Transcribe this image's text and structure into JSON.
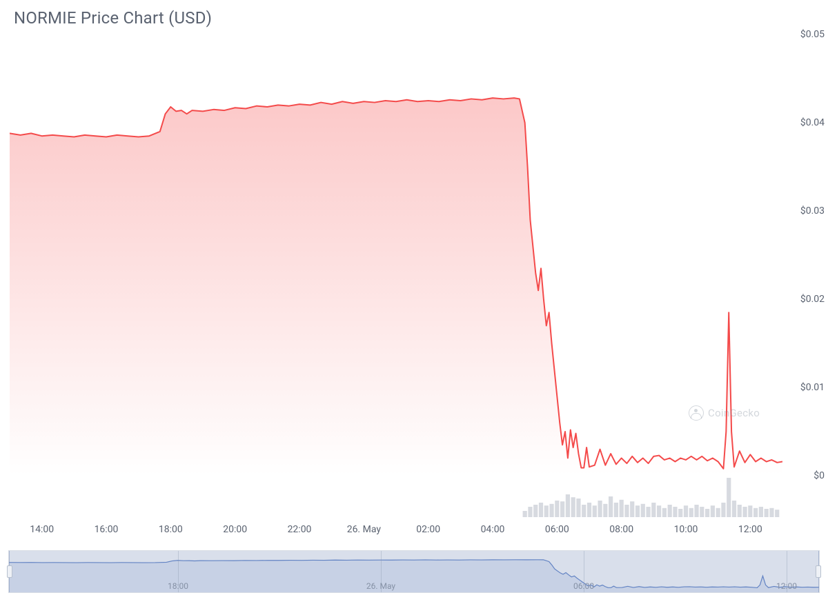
{
  "chart": {
    "title": "NORMIE Price Chart (USD)",
    "type": "area",
    "line_color": "#f44a4a",
    "line_width": 2,
    "area_fill_top": "rgba(244,74,74,0.30)",
    "area_fill_bottom": "rgba(244,74,74,0.00)",
    "background_color": "#ffffff",
    "title_color": "#5a6270",
    "title_fontsize": 24,
    "axis_label_color": "#5a6270",
    "axis_label_fontsize": 14,
    "ylim": [
      0,
      0.05
    ],
    "ytick_step": 0.01,
    "ytick_labels": [
      "$0",
      "$0.01",
      "$0.02",
      "$0.03",
      "$0.04",
      "$0.05"
    ],
    "x_start_minutes": 780,
    "x_end_minutes": 2220,
    "xtick_minutes": [
      840,
      960,
      1080,
      1200,
      1320,
      1440,
      1560,
      1680,
      1800,
      1920,
      2040,
      2160
    ],
    "xtick_labels": [
      "14:00",
      "16:00",
      "18:00",
      "20:00",
      "22:00",
      "26. May",
      "02:00",
      "04:00",
      "06:00",
      "08:00",
      "10:00",
      "12:00"
    ],
    "series": [
      [
        780,
        0.0388
      ],
      [
        800,
        0.0386
      ],
      [
        820,
        0.0388
      ],
      [
        840,
        0.0385
      ],
      [
        860,
        0.0386
      ],
      [
        880,
        0.0385
      ],
      [
        900,
        0.0384
      ],
      [
        920,
        0.0386
      ],
      [
        940,
        0.0385
      ],
      [
        960,
        0.0384
      ],
      [
        980,
        0.0386
      ],
      [
        1000,
        0.0385
      ],
      [
        1020,
        0.0384
      ],
      [
        1040,
        0.0385
      ],
      [
        1060,
        0.039
      ],
      [
        1070,
        0.041
      ],
      [
        1080,
        0.0418
      ],
      [
        1090,
        0.0413
      ],
      [
        1100,
        0.0414
      ],
      [
        1110,
        0.041
      ],
      [
        1120,
        0.0414
      ],
      [
        1140,
        0.0413
      ],
      [
        1160,
        0.0415
      ],
      [
        1180,
        0.0414
      ],
      [
        1200,
        0.0417
      ],
      [
        1220,
        0.0416
      ],
      [
        1240,
        0.0419
      ],
      [
        1260,
        0.0418
      ],
      [
        1280,
        0.042
      ],
      [
        1300,
        0.0419
      ],
      [
        1320,
        0.0421
      ],
      [
        1340,
        0.042
      ],
      [
        1360,
        0.0423
      ],
      [
        1380,
        0.0421
      ],
      [
        1400,
        0.0424
      ],
      [
        1420,
        0.0422
      ],
      [
        1440,
        0.0424
      ],
      [
        1460,
        0.0423
      ],
      [
        1480,
        0.0425
      ],
      [
        1500,
        0.0424
      ],
      [
        1520,
        0.0426
      ],
      [
        1540,
        0.0424
      ],
      [
        1560,
        0.0425
      ],
      [
        1580,
        0.0424
      ],
      [
        1600,
        0.0426
      ],
      [
        1620,
        0.0425
      ],
      [
        1640,
        0.0427
      ],
      [
        1660,
        0.0426
      ],
      [
        1680,
        0.0428
      ],
      [
        1700,
        0.0427
      ],
      [
        1720,
        0.0428
      ],
      [
        1730,
        0.0427
      ],
      [
        1740,
        0.04
      ],
      [
        1745,
        0.035
      ],
      [
        1750,
        0.029
      ],
      [
        1755,
        0.026
      ],
      [
        1760,
        0.023
      ],
      [
        1765,
        0.021
      ],
      [
        1770,
        0.0235
      ],
      [
        1775,
        0.02
      ],
      [
        1780,
        0.017
      ],
      [
        1785,
        0.0185
      ],
      [
        1790,
        0.015
      ],
      [
        1795,
        0.012
      ],
      [
        1800,
        0.009
      ],
      [
        1805,
        0.006
      ],
      [
        1810,
        0.0035
      ],
      [
        1815,
        0.005
      ],
      [
        1820,
        0.002
      ],
      [
        1825,
        0.0052
      ],
      [
        1830,
        0.0032
      ],
      [
        1835,
        0.0048
      ],
      [
        1840,
        0.0025
      ],
      [
        1845,
        0.0009
      ],
      [
        1850,
        0.0009
      ],
      [
        1855,
        0.0032
      ],
      [
        1860,
        0.001
      ],
      [
        1870,
        0.0012
      ],
      [
        1880,
        0.003
      ],
      [
        1890,
        0.0012
      ],
      [
        1900,
        0.0025
      ],
      [
        1910,
        0.0013
      ],
      [
        1920,
        0.002
      ],
      [
        1930,
        0.0014
      ],
      [
        1940,
        0.0022
      ],
      [
        1950,
        0.0015
      ],
      [
        1960,
        0.002
      ],
      [
        1970,
        0.0014
      ],
      [
        1980,
        0.0022
      ],
      [
        1990,
        0.0023
      ],
      [
        2000,
        0.0018
      ],
      [
        2010,
        0.002
      ],
      [
        2020,
        0.0016
      ],
      [
        2030,
        0.002
      ],
      [
        2040,
        0.0018
      ],
      [
        2050,
        0.0022
      ],
      [
        2060,
        0.0018
      ],
      [
        2070,
        0.0022
      ],
      [
        2080,
        0.0017
      ],
      [
        2090,
        0.002
      ],
      [
        2100,
        0.0016
      ],
      [
        2110,
        0.0008
      ],
      [
        2115,
        0.005
      ],
      [
        2120,
        0.0185
      ],
      [
        2125,
        0.005
      ],
      [
        2130,
        0.001
      ],
      [
        2140,
        0.0028
      ],
      [
        2150,
        0.0015
      ],
      [
        2160,
        0.0024
      ],
      [
        2170,
        0.0016
      ],
      [
        2180,
        0.002
      ],
      [
        2190,
        0.0016
      ],
      [
        2200,
        0.0018
      ],
      [
        2210,
        0.0015
      ],
      [
        2220,
        0.0016
      ]
    ],
    "volume": {
      "bar_color": "rgba(140,150,165,0.35)",
      "max_display": 1.0,
      "bars": [
        [
          1740,
          0.15
        ],
        [
          1750,
          0.25
        ],
        [
          1760,
          0.3
        ],
        [
          1770,
          0.35
        ],
        [
          1780,
          0.28
        ],
        [
          1790,
          0.32
        ],
        [
          1800,
          0.4
        ],
        [
          1810,
          0.38
        ],
        [
          1820,
          0.55
        ],
        [
          1830,
          0.48
        ],
        [
          1840,
          0.45
        ],
        [
          1850,
          0.3
        ],
        [
          1860,
          0.35
        ],
        [
          1870,
          0.28
        ],
        [
          1880,
          0.4
        ],
        [
          1890,
          0.32
        ],
        [
          1900,
          0.5
        ],
        [
          1910,
          0.35
        ],
        [
          1920,
          0.42
        ],
        [
          1930,
          0.3
        ],
        [
          1940,
          0.38
        ],
        [
          1950,
          0.28
        ],
        [
          1960,
          0.32
        ],
        [
          1970,
          0.25
        ],
        [
          1980,
          0.35
        ],
        [
          1990,
          0.28
        ],
        [
          2000,
          0.22
        ],
        [
          2010,
          0.3
        ],
        [
          2020,
          0.25
        ],
        [
          2030,
          0.2
        ],
        [
          2040,
          0.28
        ],
        [
          2050,
          0.22
        ],
        [
          2060,
          0.3
        ],
        [
          2070,
          0.25
        ],
        [
          2080,
          0.2
        ],
        [
          2090,
          0.28
        ],
        [
          2100,
          0.22
        ],
        [
          2110,
          0.35
        ],
        [
          2120,
          0.95
        ],
        [
          2130,
          0.4
        ],
        [
          2140,
          0.3
        ],
        [
          2150,
          0.25
        ],
        [
          2160,
          0.28
        ],
        [
          2170,
          0.22
        ],
        [
          2180,
          0.25
        ],
        [
          2190,
          0.2
        ],
        [
          2200,
          0.22
        ],
        [
          2210,
          0.18
        ]
      ]
    },
    "watermark": "CoinGecko"
  },
  "navigator": {
    "background_color": "#f5f7fa",
    "border_color": "#d8dde5",
    "overlay_color": "rgba(120,140,180,0.22)",
    "line_color": "#5b7fc7",
    "line_width": 1.2,
    "fill_color": "rgba(91,127,199,0.15)",
    "x_start_minutes": 780,
    "x_end_minutes": 2220,
    "tick_minutes": [
      1080,
      1440,
      1800,
      2160
    ],
    "tick_labels": [
      "18:00",
      "26. May",
      "06:00",
      "12:00"
    ]
  }
}
